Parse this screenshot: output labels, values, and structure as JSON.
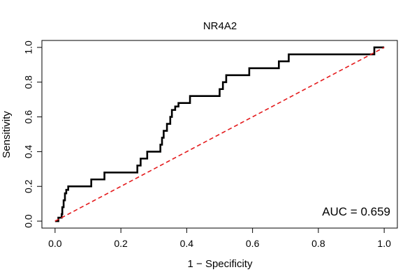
{
  "chart_data": {
    "type": "line",
    "title": "NR4A2",
    "xlabel": "1 − Specificity",
    "ylabel": "Sensitivity",
    "xlim": [
      -0.04,
      1.04
    ],
    "ylim": [
      -0.04,
      1.04
    ],
    "xticks": [
      0.0,
      0.2,
      0.4,
      0.6,
      0.8,
      1.0
    ],
    "yticks": [
      0.0,
      0.2,
      0.4,
      0.6,
      0.8,
      1.0
    ],
    "xtick_labels": [
      "0.0",
      "0.2",
      "0.4",
      "0.6",
      "0.8",
      "1.0"
    ],
    "ytick_labels": [
      "0.0",
      "0.2",
      "0.4",
      "0.6",
      "0.8",
      "1.0"
    ],
    "grid": false,
    "annotation": "AUC = 0.659",
    "colors": {
      "roc": "#000000",
      "reference": "#e41a1c"
    },
    "series": [
      {
        "style": "solid",
        "x": [
          0.0,
          0.01,
          0.01,
          0.02,
          0.02,
          0.022,
          0.022,
          0.026,
          0.026,
          0.03,
          0.03,
          0.034,
          0.034,
          0.04,
          0.04,
          0.11,
          0.11,
          0.15,
          0.15,
          0.25,
          0.25,
          0.26,
          0.26,
          0.28,
          0.28,
          0.32,
          0.32,
          0.325,
          0.325,
          0.33,
          0.33,
          0.34,
          0.34,
          0.35,
          0.35,
          0.355,
          0.355,
          0.365,
          0.365,
          0.375,
          0.375,
          0.38,
          0.38,
          0.41,
          0.41,
          0.5,
          0.5,
          0.51,
          0.51,
          0.52,
          0.52,
          0.53,
          0.53,
          0.59,
          0.59,
          0.68,
          0.68,
          0.71,
          0.71,
          0.97,
          0.97,
          1.0
        ],
        "y": [
          0.0,
          0.0,
          0.02,
          0.02,
          0.04,
          0.04,
          0.08,
          0.08,
          0.12,
          0.12,
          0.16,
          0.16,
          0.18,
          0.18,
          0.2,
          0.2,
          0.24,
          0.24,
          0.28,
          0.28,
          0.32,
          0.32,
          0.36,
          0.36,
          0.4,
          0.4,
          0.44,
          0.44,
          0.48,
          0.48,
          0.52,
          0.52,
          0.56,
          0.56,
          0.6,
          0.6,
          0.64,
          0.64,
          0.66,
          0.66,
          0.68,
          0.68,
          0.68,
          0.68,
          0.72,
          0.72,
          0.76,
          0.76,
          0.8,
          0.8,
          0.84,
          0.84,
          0.84,
          0.84,
          0.88,
          0.88,
          0.92,
          0.92,
          0.96,
          0.96,
          1.0,
          1.0
        ]
      },
      {
        "style": "dashed",
        "x": [
          0,
          1
        ],
        "y": [
          0,
          1
        ]
      }
    ]
  }
}
